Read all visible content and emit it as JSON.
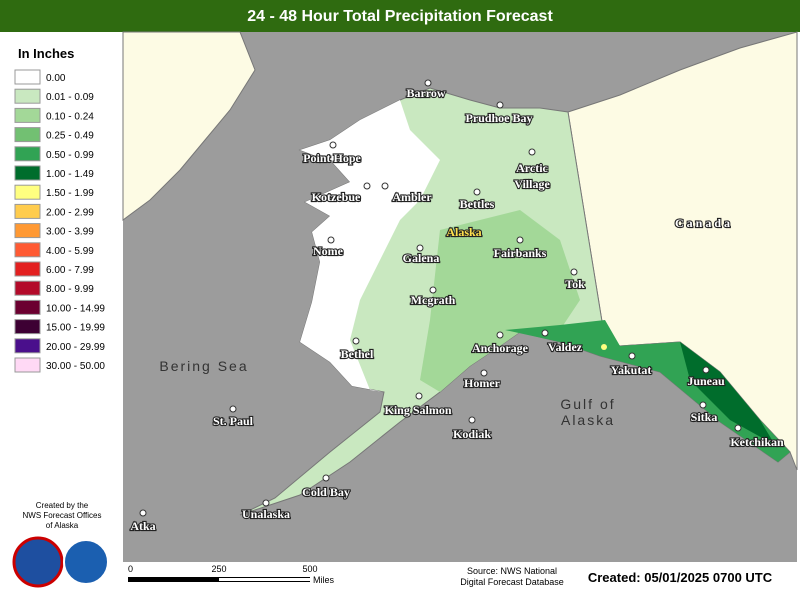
{
  "header": {
    "title": "24 - 48 Hour Total Precipitation Forecast"
  },
  "legend": {
    "title": "In Inches",
    "items": [
      {
        "label": "0.00",
        "color": "#ffffff"
      },
      {
        "label": "0.01 - 0.09",
        "color": "#c9e8c0"
      },
      {
        "label": "0.10 - 0.24",
        "color": "#a3d898"
      },
      {
        "label": "0.25 - 0.49",
        "color": "#72c072"
      },
      {
        "label": "0.50 - 0.99",
        "color": "#31a354"
      },
      {
        "label": "1.00 - 1.49",
        "color": "#006d2c"
      },
      {
        "label": "1.50 - 1.99",
        "color": "#ffff80"
      },
      {
        "label": "2.00 - 2.99",
        "color": "#ffcc4d"
      },
      {
        "label": "3.00 - 3.99",
        "color": "#ff9933"
      },
      {
        "label": "4.00 - 5.99",
        "color": "#ff5a33"
      },
      {
        "label": "6.00 - 7.99",
        "color": "#e32020"
      },
      {
        "label": "8.00 - 9.99",
        "color": "#b30a2a"
      },
      {
        "label": "10.00 - 14.99",
        "color": "#6b0030"
      },
      {
        "label": "15.00 - 19.99",
        "color": "#3d0033"
      },
      {
        "label": "20.00 - 29.99",
        "color": "#4a0f8c"
      },
      {
        "label": "30.00 - 50.00",
        "color": "#ffd9f5"
      }
    ]
  },
  "credit": [
    "Created by the",
    "NWS Forecast Offices",
    "of Alaska"
  ],
  "map": {
    "cities": [
      "Barrow",
      "Prudhoe Bay",
      "Point Hope",
      "Kotzebue",
      "Ambler",
      "Bettles",
      "Nome",
      "Fairbanks",
      "Galena",
      "Tok",
      "Mcgrath",
      "Anchorage",
      "Valdez",
      "Yakutat",
      "Bethel",
      "Homer",
      "Juneau",
      "King Salmon",
      "Sitka",
      "St. Paul",
      "Kodiak",
      "Ketchikan",
      "Cold Bay",
      "Unalaska",
      "Atka"
    ],
    "arctic_village": [
      "Arctic",
      "Village"
    ],
    "state": "Alaska",
    "country": "Canada",
    "sea": "Bering Sea",
    "gulf": [
      "Gulf of",
      "Alaska"
    ]
  },
  "scale": {
    "ticks": [
      "0",
      "250",
      "500"
    ],
    "unit": "Miles"
  },
  "footer": {
    "source": [
      "Source: NWS National",
      "Digital Forecast Database"
    ],
    "created": "Created: 05/01/2025 0700 UTC"
  }
}
